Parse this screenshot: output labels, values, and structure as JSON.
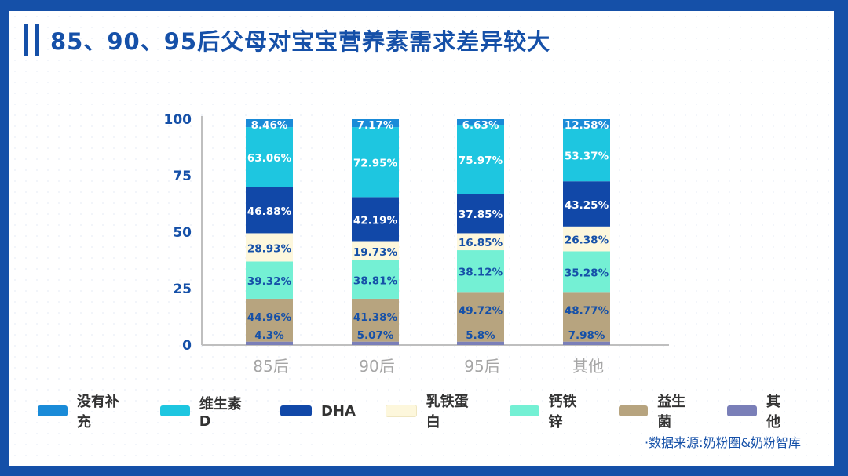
{
  "page": {
    "title": "85、90、95后父母对宝宝营养素需求差异较大",
    "source": "·数据来源:奶粉圈&奶粉智库"
  },
  "chart_data": {
    "type": "bar",
    "stacked": true,
    "categories": [
      "85后",
      "90后",
      "95后",
      "其他"
    ],
    "ylim": [
      0,
      100
    ],
    "yticks": [
      0,
      25,
      50,
      75,
      100
    ],
    "series": [
      {
        "name": "其他",
        "color": "#7a7fb8",
        "labels": [
          "4.3%",
          "5.07%",
          "5.8%",
          "7.98%"
        ],
        "heights": [
          1.5,
          1.5,
          1.5,
          1.5
        ]
      },
      {
        "name": "益生菌",
        "color": "#b7a47f",
        "labels": [
          "44.96%",
          "41.38%",
          "49.72%",
          "48.77%"
        ],
        "heights": [
          19,
          19,
          22,
          22
        ]
      },
      {
        "name": "钙铁锌",
        "color": "#74f0d4",
        "labels": [
          "39.32%",
          "38.81%",
          "38.12%",
          "35.28%"
        ],
        "heights": [
          16.5,
          17,
          18.5,
          18
        ]
      },
      {
        "name": "乳铁蛋白",
        "color": "#fdf7dc",
        "labels": [
          "28.93%",
          "19.73%",
          "16.85%",
          "26.38%"
        ],
        "heights": [
          12.5,
          8.5,
          7.5,
          11
        ]
      },
      {
        "name": "DHA",
        "color": "#1148a8",
        "labels": [
          "46.88%",
          "42.19%",
          "37.85%",
          "43.25%"
        ],
        "heights": [
          20.5,
          19.5,
          17.5,
          20
        ]
      },
      {
        "name": "维生素D",
        "color": "#1ec6e0",
        "labels": [
          "63.06%",
          "72.95%",
          "75.97%",
          "53.37%"
        ],
        "heights": [
          26.5,
          31,
          30.5,
          23.5
        ]
      },
      {
        "name": "没有补充",
        "color": "#1a8bd8",
        "labels": [
          "8.46%",
          "7.17%",
          "6.63%",
          "12.58%"
        ],
        "heights": [
          3.5,
          3.5,
          2.5,
          4
        ]
      }
    ]
  },
  "legend_order": [
    "没有补充",
    "维生素D",
    "DHA",
    "乳铁蛋白",
    "钙铁锌",
    "益生菌",
    "其他"
  ]
}
